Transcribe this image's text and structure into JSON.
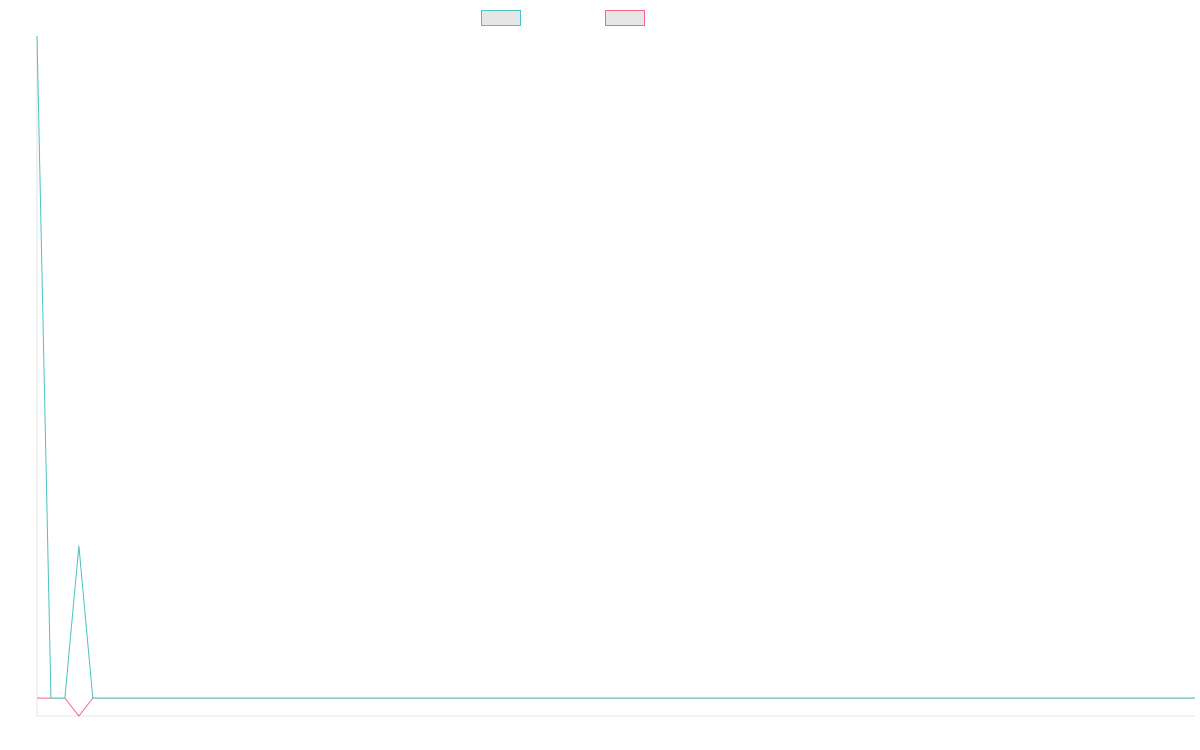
{
  "chart_data": {
    "type": "line",
    "title": "",
    "xlabel": "",
    "ylabel": "",
    "x": [
      0,
      1,
      2,
      3,
      4,
      5,
      6,
      7,
      8,
      9,
      10,
      11,
      12,
      13,
      14,
      15,
      16,
      17,
      18,
      19,
      20,
      21,
      22,
      23,
      24,
      25,
      26,
      27,
      28,
      29,
      30,
      31,
      32,
      33,
      34,
      35,
      36,
      37,
      38,
      39,
      40,
      41,
      42,
      43,
      44,
      45,
      46,
      47,
      48,
      49,
      50,
      51,
      52,
      53,
      54,
      55,
      56,
      57,
      58,
      59,
      60,
      61,
      62,
      63,
      64,
      65,
      66,
      67,
      68,
      69,
      70,
      71,
      72,
      73,
      74,
      75,
      76,
      77,
      78,
      79,
      80,
      81,
      82,
      83
    ],
    "series": [
      {
        "values": [
          1,
          0,
          0,
          0.23,
          0,
          0,
          0,
          0,
          0,
          0,
          0,
          0,
          0,
          0,
          0,
          0,
          0,
          0,
          0,
          0,
          0,
          0,
          0,
          0,
          0,
          0,
          0,
          0,
          0,
          0,
          0,
          0,
          0,
          0,
          0,
          0,
          0,
          0,
          0,
          0,
          0,
          0,
          0,
          0,
          0,
          0,
          0,
          0,
          0,
          0,
          0,
          0,
          0,
          0,
          0,
          0,
          0,
          0,
          0,
          0,
          0,
          0,
          0,
          0,
          0,
          0,
          0,
          0,
          0,
          0,
          0,
          0,
          0,
          0,
          0,
          0,
          0,
          0,
          0,
          0,
          0,
          0,
          0,
          0
        ],
        "color": "#4bc0c0",
        "fill": "#e6e6e6"
      },
      {
        "values": [
          0,
          0,
          0,
          -0.027,
          0,
          0,
          0,
          0,
          0,
          0,
          0,
          0,
          0,
          0,
          0,
          0,
          0,
          0,
          0,
          0,
          0,
          0,
          0,
          0,
          0,
          0,
          0,
          0,
          0,
          0,
          0,
          0,
          0,
          0,
          0,
          0,
          0,
          0,
          0,
          0,
          0,
          0,
          0,
          0,
          0,
          0,
          0,
          0,
          0,
          0,
          0,
          0,
          0,
          0,
          0,
          0,
          0,
          0,
          0,
          0,
          0,
          0,
          0,
          0,
          0,
          0,
          0,
          0,
          0,
          0,
          0,
          0,
          0,
          0,
          0,
          0,
          0,
          0,
          0,
          0,
          0,
          0,
          0,
          0
        ],
        "color": "#ff6384",
        "fill": "#e6e6e6"
      }
    ],
    "ylim": [
      -0.027,
      1
    ],
    "grid": false,
    "legend": "top-center"
  }
}
